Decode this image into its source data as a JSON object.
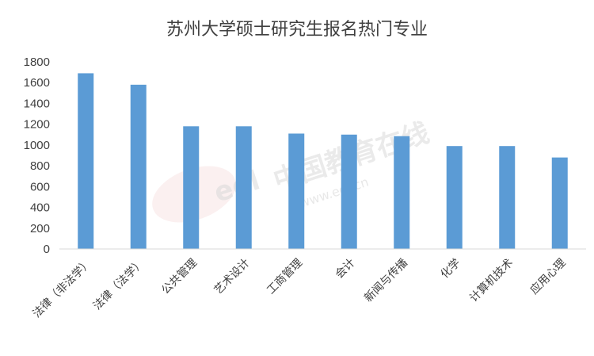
{
  "chart_data": {
    "type": "bar",
    "title": "苏州大学硕士研究生报名热门专业",
    "xlabel": "",
    "ylabel": "",
    "categories": [
      "法律（非法学）",
      "法律（法学）",
      "公共管理",
      "艺术设计",
      "工商管理",
      "会计",
      "新闻与传播",
      "化学",
      "计算机技术",
      "应用心理"
    ],
    "values": [
      1690,
      1580,
      1180,
      1180,
      1110,
      1100,
      1085,
      990,
      990,
      880
    ],
    "ylim": [
      0,
      1800
    ],
    "yticks": [
      0,
      200,
      400,
      600,
      800,
      1000,
      1200,
      1400,
      1600,
      1800
    ],
    "grid": false,
    "legend": "none",
    "bar_color": "#5b9bd5"
  },
  "watermark": {
    "logo_text": "eol",
    "cn_text": "中国教育在线",
    "url_text": "www.eol.cn",
    "accent_color": "#e06a6a"
  }
}
